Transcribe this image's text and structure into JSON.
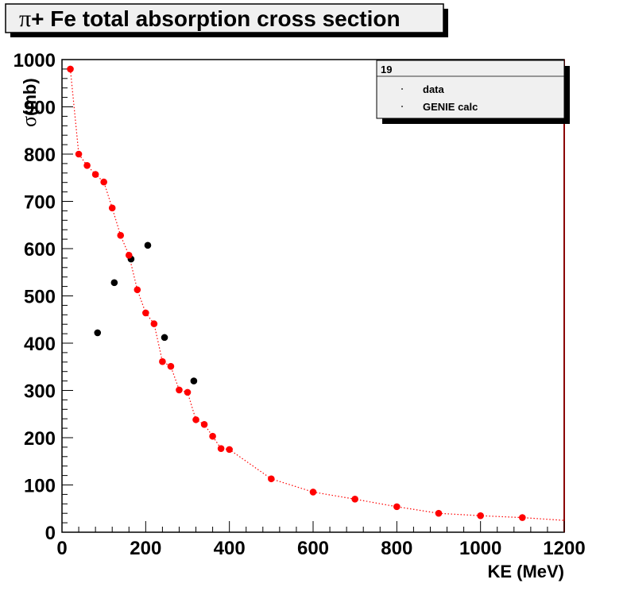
{
  "chart_data": {
    "type": "scatter",
    "title_symbol": "π",
    "title_rest": "+ Fe total absorption cross section",
    "xlabel": "KE (MeV)",
    "ylabel_symbol": "σ",
    "ylabel_rest": "(mb)",
    "xlim": [
      0,
      1200
    ],
    "ylim": [
      0,
      1000
    ],
    "x_ticks": [
      0,
      200,
      400,
      600,
      800,
      1000,
      1200
    ],
    "y_ticks": [
      0,
      100,
      200,
      300,
      400,
      500,
      600,
      700,
      800,
      900,
      1000
    ],
    "x_tick_labels": [
      "0",
      "200",
      "400",
      "600",
      "800",
      "1000",
      "1200"
    ],
    "y_tick_labels": [
      "0",
      "100",
      "200",
      "300",
      "400",
      "500",
      "600",
      "700",
      "800",
      "900",
      "1000"
    ],
    "legend": {
      "header": "19",
      "position": "top-right"
    },
    "colors": {
      "data": "#000000",
      "calc": "#ff0000",
      "frame": "#000000",
      "right_edge": "#8b0000"
    },
    "series": [
      {
        "name": "data",
        "style": "points",
        "x": [
          85,
          125,
          165,
          205,
          245,
          315
        ],
        "y": [
          422,
          528,
          578,
          607,
          412,
          320
        ]
      },
      {
        "name": "GENIE calc",
        "style": "points+dotted-line",
        "x": [
          20,
          40,
          60,
          80,
          100,
          120,
          140,
          160,
          180,
          200,
          220,
          240,
          260,
          280,
          300,
          320,
          340,
          360,
          380,
          400,
          500,
          600,
          700,
          800,
          900,
          1000,
          1100,
          1200
        ],
        "y": [
          980,
          800,
          776,
          757,
          741,
          686,
          628,
          586,
          513,
          464,
          441,
          361,
          351,
          301,
          296,
          238,
          228,
          203,
          177,
          175,
          113,
          85,
          70,
          54,
          40,
          35,
          31,
          25
        ],
        "marker_flags": [
          1,
          1,
          1,
          1,
          1,
          1,
          1,
          1,
          1,
          1,
          1,
          1,
          1,
          1,
          1,
          1,
          1,
          1,
          1,
          1,
          1,
          1,
          1,
          1,
          1,
          1,
          1,
          0
        ]
      }
    ]
  }
}
